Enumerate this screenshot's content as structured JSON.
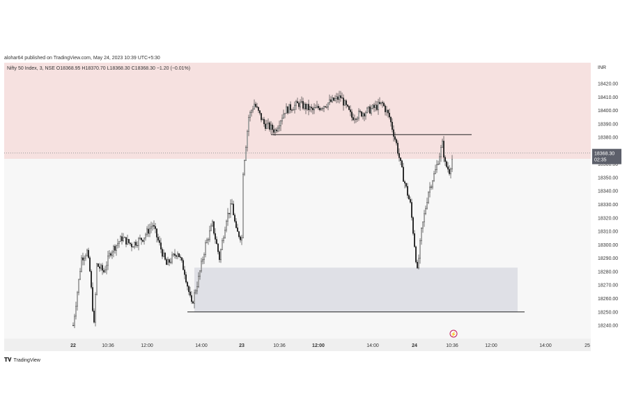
{
  "header": {
    "published": "alohar64 published on TradingView.com, May 24, 2023 10:39 UTC+5:30"
  },
  "legend": {
    "text": "Nifty 50 Index, 3, NSE  O18368.95  H18370.70  L18368.30  C18368.30  −1.20 (−0.01%)"
  },
  "footer": {
    "brand": "TradingView",
    "logo": "TV"
  },
  "chart_data": {
    "type": "candlestick",
    "title": "Nifty 50 Index, 3, NSE",
    "currency": "INR",
    "ylim": [
      18232,
      18440
    ],
    "y_ticks": [
      18420,
      18410,
      18400,
      18390,
      18380,
      18360,
      18350,
      18340,
      18330,
      18320,
      18310,
      18300,
      18290,
      18280,
      18270,
      18260,
      18250,
      18240
    ],
    "x_ticks": [
      {
        "label": "22",
        "i": 0,
        "bold": true
      },
      {
        "label": "10:36",
        "i": 25
      },
      {
        "label": "12:00",
        "i": 53
      },
      {
        "label": "14:00",
        "i": 92
      },
      {
        "label": "23",
        "i": 121,
        "bold": true
      },
      {
        "label": "10:36",
        "i": 148
      },
      {
        "label": "12:00",
        "i": 176,
        "bold": true
      },
      {
        "label": "14:00",
        "i": 215
      },
      {
        "label": "24",
        "i": 245,
        "bold": true
      },
      {
        "label": "10:36",
        "i": 272
      },
      {
        "label": "12:00",
        "i": 300
      },
      {
        "label": "14:00",
        "i": 339
      },
      {
        "label": "25",
        "i": 369
      }
    ],
    "close_path": [
      [
        0,
        18240
      ],
      [
        3,
        18265
      ],
      [
        6,
        18290
      ],
      [
        10,
        18295
      ],
      [
        12,
        18280
      ],
      [
        15,
        18240
      ],
      [
        17,
        18285
      ],
      [
        22,
        18280
      ],
      [
        27,
        18295
      ],
      [
        35,
        18305
      ],
      [
        42,
        18300
      ],
      [
        50,
        18305
      ],
      [
        57,
        18315
      ],
      [
        62,
        18300
      ],
      [
        67,
        18285
      ],
      [
        75,
        18295
      ],
      [
        80,
        18280
      ],
      [
        85,
        18255
      ],
      [
        90,
        18275
      ],
      [
        95,
        18300
      ],
      [
        100,
        18315
      ],
      [
        105,
        18290
      ],
      [
        110,
        18320
      ],
      [
        114,
        18330
      ],
      [
        117,
        18310
      ],
      [
        121,
        18305
      ],
      [
        122,
        18355
      ],
      [
        126,
        18395
      ],
      [
        130,
        18405
      ],
      [
        137,
        18390
      ],
      [
        145,
        18385
      ],
      [
        152,
        18400
      ],
      [
        162,
        18405
      ],
      [
        172,
        18400
      ],
      [
        182,
        18405
      ],
      [
        192,
        18410
      ],
      [
        200,
        18395
      ],
      [
        212,
        18400
      ],
      [
        222,
        18405
      ],
      [
        227,
        18395
      ],
      [
        232,
        18375
      ],
      [
        237,
        18350
      ],
      [
        242,
        18330
      ],
      [
        245,
        18300
      ],
      [
        247,
        18280
      ],
      [
        250,
        18310
      ],
      [
        255,
        18340
      ],
      [
        260,
        18355
      ],
      [
        265,
        18375
      ],
      [
        267,
        18360
      ],
      [
        270,
        18355
      ],
      [
        273,
        18368
      ]
    ],
    "last_price": "18368.30",
    "countdown": "02:35",
    "zones": [
      {
        "name": "supply",
        "from": 18364,
        "to": 18440,
        "color": "#f6e1e0"
      },
      {
        "name": "demand-box",
        "from": 18250,
        "to": 18283,
        "i0": 87,
        "i1": 319,
        "color": "#dfe0e6"
      }
    ],
    "lines": [
      {
        "price": 18382,
        "i0": 142,
        "i1": 286
      },
      {
        "price": 18250,
        "i0": 82,
        "i1": 324
      }
    ]
  }
}
